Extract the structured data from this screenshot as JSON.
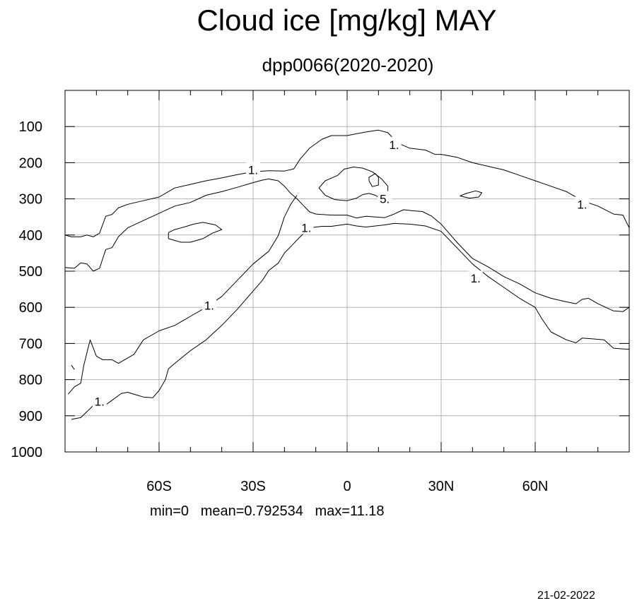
{
  "title": "Cloud ice [mg/kg] MAY",
  "subtitle": "dpp0066(2020-2020)",
  "stats": "min=0   mean=0.792534   max=11.18",
  "date": "21-02-2022",
  "chart_data": {
    "type": "contour",
    "x_axis": {
      "range": [
        -90,
        90
      ],
      "ticks": [
        -60,
        -30,
        0,
        30,
        60
      ],
      "tick_labels": [
        "60S",
        "30S",
        "0",
        "30N",
        "60N"
      ]
    },
    "y_axis": {
      "range": [
        0,
        1000
      ],
      "inverted": true,
      "ticks": [
        100,
        200,
        300,
        400,
        500,
        600,
        700,
        800,
        900,
        1000
      ],
      "tick_labels": [
        "100",
        "200",
        "300",
        "400",
        "500",
        "600",
        "700",
        "800",
        "900",
        "1000"
      ]
    },
    "grid": true,
    "contour_levels": [
      1,
      5
    ],
    "contour_labels": [
      {
        "text": "1.",
        "x": -30,
        "y": 220
      },
      {
        "text": "1.",
        "x": 15,
        "y": 150
      },
      {
        "text": "1.",
        "x": 75,
        "y": 315
      },
      {
        "text": "1.",
        "x": -13,
        "y": 380
      },
      {
        "text": "1.",
        "x": 41,
        "y": 520
      },
      {
        "text": "1.",
        "x": -44,
        "y": 595
      },
      {
        "text": "1.",
        "x": -79,
        "y": 860
      },
      {
        "text": "5.",
        "x": 12,
        "y": 300
      }
    ],
    "contours": [
      {
        "level": 1,
        "points": [
          [
            -90,
            400
          ],
          [
            -88,
            405
          ],
          [
            -85,
            405
          ],
          [
            -83,
            400
          ],
          [
            -81,
            405
          ],
          [
            -79,
            395
          ],
          [
            -77,
            348
          ],
          [
            -75,
            343
          ],
          [
            -73,
            325
          ],
          [
            -70,
            315
          ],
          [
            -65,
            305
          ],
          [
            -60,
            295
          ],
          [
            -55,
            270
          ],
          [
            -50,
            260
          ],
          [
            -45,
            250
          ],
          [
            -40,
            242
          ],
          [
            -35,
            233
          ],
          [
            -30,
            225
          ],
          [
            -25,
            222
          ],
          [
            -20,
            223
          ],
          [
            -17,
            217
          ],
          [
            -15,
            190
          ],
          [
            -12,
            160
          ],
          [
            -8,
            135
          ],
          [
            -5,
            125
          ],
          [
            0,
            125
          ],
          [
            3,
            120
          ],
          [
            6,
            115
          ],
          [
            10,
            110
          ],
          [
            13,
            117
          ],
          [
            16,
            145
          ],
          [
            20,
            160
          ],
          [
            25,
            165
          ],
          [
            28,
            177
          ],
          [
            30,
            177
          ],
          [
            35,
            185
          ],
          [
            40,
            200
          ],
          [
            45,
            210
          ],
          [
            50,
            220
          ],
          [
            55,
            235
          ],
          [
            60,
            250
          ],
          [
            65,
            265
          ],
          [
            70,
            280
          ],
          [
            75,
            305
          ],
          [
            80,
            320
          ],
          [
            85,
            342
          ],
          [
            88,
            345
          ],
          [
            90,
            380
          ]
        ]
      },
      {
        "level": 1,
        "points": [
          [
            -90,
            490
          ],
          [
            -87,
            492
          ],
          [
            -85,
            477
          ],
          [
            -83,
            480
          ],
          [
            -81,
            500
          ],
          [
            -79,
            492
          ],
          [
            -77,
            440
          ],
          [
            -75,
            435
          ],
          [
            -73,
            405
          ],
          [
            -70,
            380
          ],
          [
            -65,
            360
          ],
          [
            -60,
            340
          ],
          [
            -55,
            320
          ],
          [
            -50,
            310
          ],
          [
            -45,
            290
          ],
          [
            -40,
            280
          ],
          [
            -35,
            268
          ],
          [
            -30,
            255
          ],
          [
            -27,
            248
          ],
          [
            -25,
            245
          ],
          [
            -22,
            250
          ],
          [
            -20,
            265
          ],
          [
            -18,
            285
          ],
          [
            -16,
            300
          ],
          [
            -14,
            318
          ],
          [
            -12,
            336
          ],
          [
            -10,
            342
          ],
          [
            -5,
            345
          ],
          [
            0,
            345
          ],
          [
            3,
            353
          ],
          [
            6,
            348
          ],
          [
            9,
            350
          ],
          [
            12,
            352
          ],
          [
            15,
            342
          ],
          [
            18,
            330
          ],
          [
            21,
            333
          ],
          [
            24,
            335
          ],
          [
            27,
            348
          ],
          [
            30,
            370
          ],
          [
            35,
            420
          ],
          [
            40,
            465
          ],
          [
            45,
            488
          ],
          [
            50,
            515
          ],
          [
            55,
            535
          ],
          [
            60,
            560
          ],
          [
            65,
            575
          ],
          [
            70,
            585
          ],
          [
            73,
            590
          ],
          [
            75,
            578
          ],
          [
            77,
            575
          ],
          [
            80,
            590
          ],
          [
            85,
            610
          ],
          [
            88,
            612
          ],
          [
            90,
            600
          ]
        ]
      },
      {
        "level": 1,
        "points": [
          [
            -88,
            760
          ],
          [
            -87,
            772
          ]
        ]
      },
      {
        "level": 1,
        "points": [
          [
            -89,
            840
          ],
          [
            -87,
            820
          ],
          [
            -85,
            810
          ],
          [
            -84,
            760
          ],
          [
            -82,
            690
          ],
          [
            -80,
            735
          ],
          [
            -78,
            745
          ],
          [
            -75,
            745
          ],
          [
            -73,
            755
          ],
          [
            -70,
            740
          ],
          [
            -68,
            730
          ],
          [
            -65,
            690
          ],
          [
            -60,
            665
          ],
          [
            -55,
            650
          ],
          [
            -50,
            625
          ],
          [
            -45,
            600
          ],
          [
            -40,
            570
          ],
          [
            -35,
            525
          ],
          [
            -30,
            480
          ],
          [
            -25,
            445
          ],
          [
            -22,
            402
          ],
          [
            -20,
            350
          ],
          [
            -18,
            315
          ],
          [
            -16,
            290
          ]
        ]
      },
      {
        "level": 1,
        "points": [
          [
            -88,
            910
          ],
          [
            -85,
            905
          ],
          [
            -82,
            880
          ],
          [
            -80,
            862
          ],
          [
            -78,
            868
          ],
          [
            -77,
            870
          ],
          [
            -75,
            857
          ],
          [
            -72,
            838
          ],
          [
            -70,
            835
          ],
          [
            -67,
            843
          ],
          [
            -65,
            848
          ],
          [
            -62,
            850
          ],
          [
            -60,
            830
          ],
          [
            -58,
            800
          ],
          [
            -57,
            770
          ],
          [
            -55,
            755
          ],
          [
            -50,
            720
          ],
          [
            -45,
            690
          ],
          [
            -40,
            650
          ],
          [
            -35,
            605
          ],
          [
            -30,
            555
          ],
          [
            -27,
            525
          ],
          [
            -25,
            498
          ],
          [
            -22,
            478
          ],
          [
            -20,
            450
          ],
          [
            -18,
            432
          ],
          [
            -15,
            405
          ],
          [
            -12,
            380
          ],
          [
            -8,
            376
          ],
          [
            -5,
            376
          ],
          [
            0,
            370
          ],
          [
            3,
            375
          ],
          [
            6,
            378
          ],
          [
            9,
            375
          ],
          [
            12,
            372
          ],
          [
            15,
            368
          ],
          [
            20,
            370
          ],
          [
            25,
            375
          ],
          [
            30,
            390
          ],
          [
            35,
            435
          ],
          [
            40,
            480
          ],
          [
            45,
            515
          ],
          [
            50,
            545
          ],
          [
            55,
            575
          ],
          [
            60,
            600
          ],
          [
            62,
            630
          ],
          [
            65,
            668
          ],
          [
            70,
            690
          ],
          [
            73,
            698
          ],
          [
            75,
            685
          ],
          [
            78,
            687
          ],
          [
            82,
            690
          ],
          [
            85,
            713
          ],
          [
            88,
            715
          ],
          [
            90,
            716
          ]
        ]
      },
      {
        "level": 1,
        "points": [
          [
            -57,
            393
          ],
          [
            -55,
            385
          ],
          [
            -52,
            378
          ],
          [
            -49,
            370
          ],
          [
            -46,
            365
          ],
          [
            -42,
            372
          ],
          [
            -40,
            385
          ],
          [
            -43,
            395
          ],
          [
            -46,
            410
          ],
          [
            -50,
            420
          ],
          [
            -53,
            420
          ],
          [
            -55,
            415
          ],
          [
            -57,
            410
          ],
          [
            -57,
            393
          ]
        ]
      },
      {
        "level": 1,
        "points": [
          [
            36,
            292
          ],
          [
            38,
            285
          ],
          [
            41,
            278
          ],
          [
            43,
            283
          ],
          [
            42,
            295
          ],
          [
            39,
            298
          ],
          [
            36,
            292
          ]
        ]
      },
      {
        "level": 5,
        "points": [
          [
            -3,
            235
          ],
          [
            -7,
            250
          ],
          [
            -9,
            270
          ],
          [
            -7,
            290
          ],
          [
            -4,
            302
          ],
          [
            0,
            305
          ],
          [
            3,
            298
          ],
          [
            5,
            288
          ],
          [
            7,
            285
          ],
          [
            9,
            290
          ],
          [
            11,
            302
          ],
          [
            13,
            290
          ],
          [
            13,
            265
          ],
          [
            11,
            245
          ],
          [
            8,
            225
          ],
          [
            5,
            215
          ],
          [
            2,
            212
          ],
          [
            -1,
            218
          ],
          [
            -3,
            235
          ]
        ]
      },
      {
        "level": 5,
        "points": [
          [
            7,
            250
          ],
          [
            7,
            240
          ],
          [
            9,
            230
          ],
          [
            10,
            240
          ],
          [
            10,
            262
          ],
          [
            8,
            266
          ],
          [
            7,
            250
          ]
        ]
      }
    ]
  }
}
